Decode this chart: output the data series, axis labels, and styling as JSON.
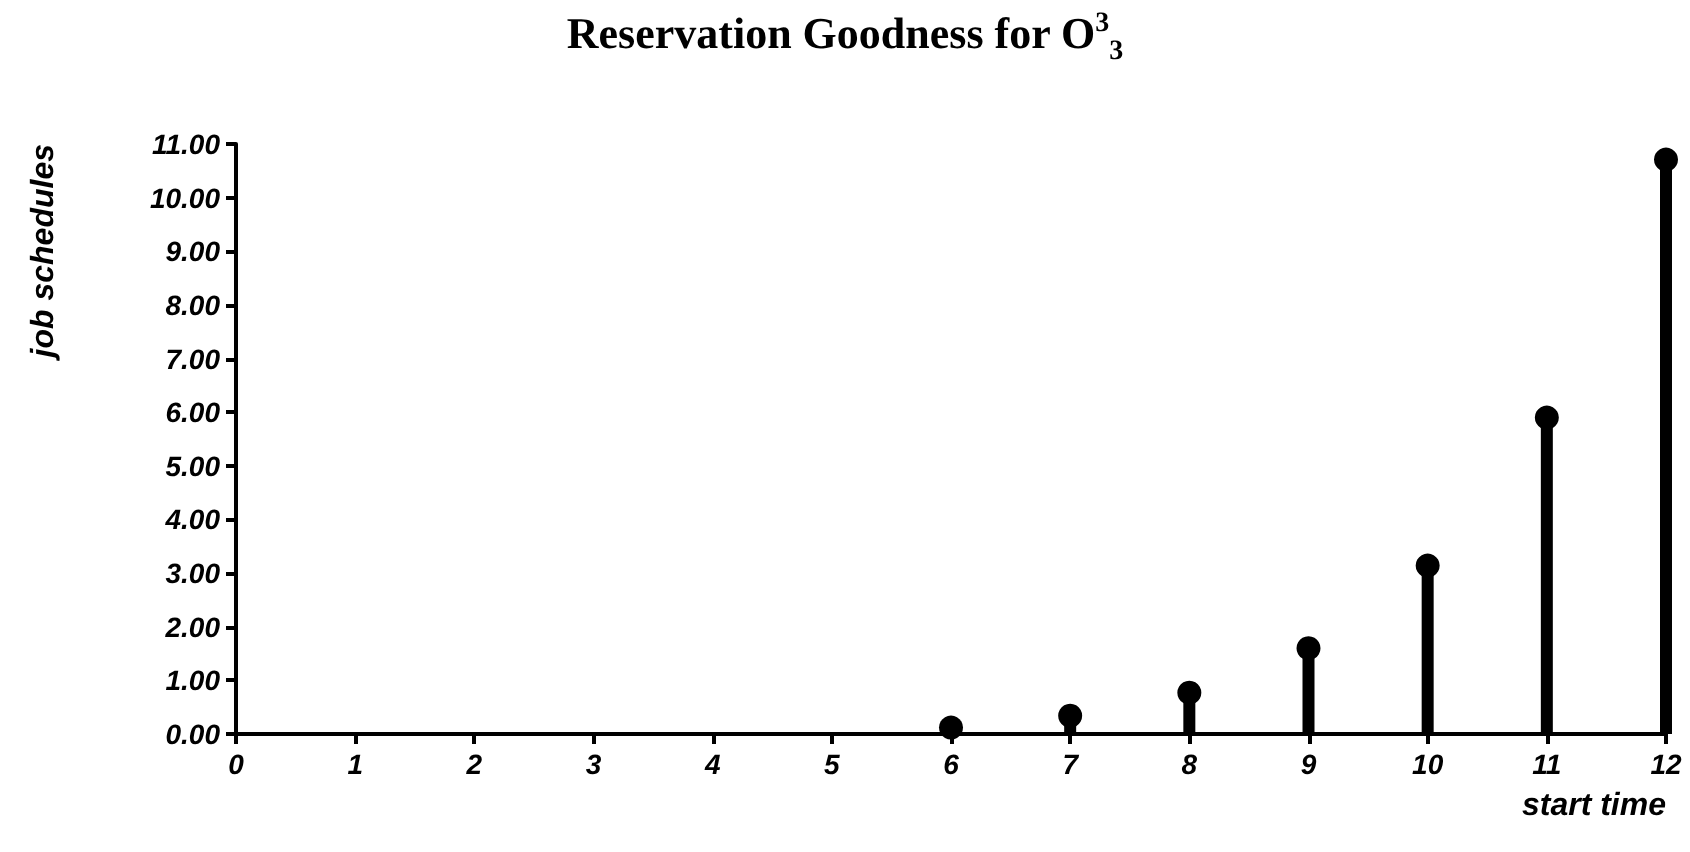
{
  "chart_data": {
    "type": "lollipop",
    "title": "Reservation Goodness for O$^{3}$$_{3}$",
    "xlabel": "start time",
    "ylabel": "job schedules",
    "x": [
      6,
      7,
      8,
      9,
      10,
      11,
      12
    ],
    "series": [
      {
        "color": "#000000",
        "values": [
          0.12,
          0.34,
          0.77,
          1.6,
          3.14,
          5.9,
          10.71
        ]
      }
    ],
    "xlim": [
      0,
      12
    ],
    "xticks": [
      0,
      1,
      2,
      3,
      4,
      5,
      6,
      7,
      8,
      9,
      10,
      11,
      12
    ],
    "ylim": [
      0,
      11
    ],
    "yticks": [
      {
        "value": 0,
        "label": "0.00"
      },
      {
        "value": 1,
        "label": "1.00"
      },
      {
        "value": 2,
        "label": "2.00"
      },
      {
        "value": 3,
        "label": "3.00"
      },
      {
        "value": 4,
        "label": "4.00"
      },
      {
        "value": 5,
        "label": "5.00"
      },
      {
        "value": 6,
        "label": "6.00"
      },
      {
        "value": 7,
        "label": "7.00"
      },
      {
        "value": 8,
        "label": "8.00"
      },
      {
        "value": 9,
        "label": "9.00"
      },
      {
        "value": 10,
        "label": "10.00"
      },
      {
        "value": 11,
        "label": "11.00"
      }
    ],
    "grid": false,
    "marker": "circle"
  }
}
